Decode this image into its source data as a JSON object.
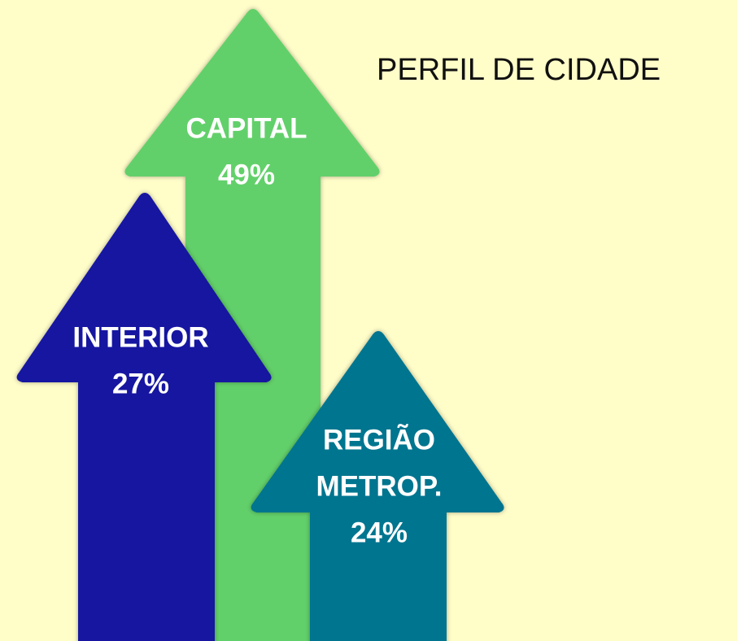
{
  "title": "PERFIL DE CIDADE",
  "arrows": [
    {
      "label_lines": [
        "CAPITAL"
      ],
      "value": "49%"
    },
    {
      "label_lines": [
        "INTERIOR"
      ],
      "value": "27%"
    },
    {
      "label_lines": [
        "REGIÃO",
        "METROP."
      ],
      "value": "24%"
    }
  ]
}
